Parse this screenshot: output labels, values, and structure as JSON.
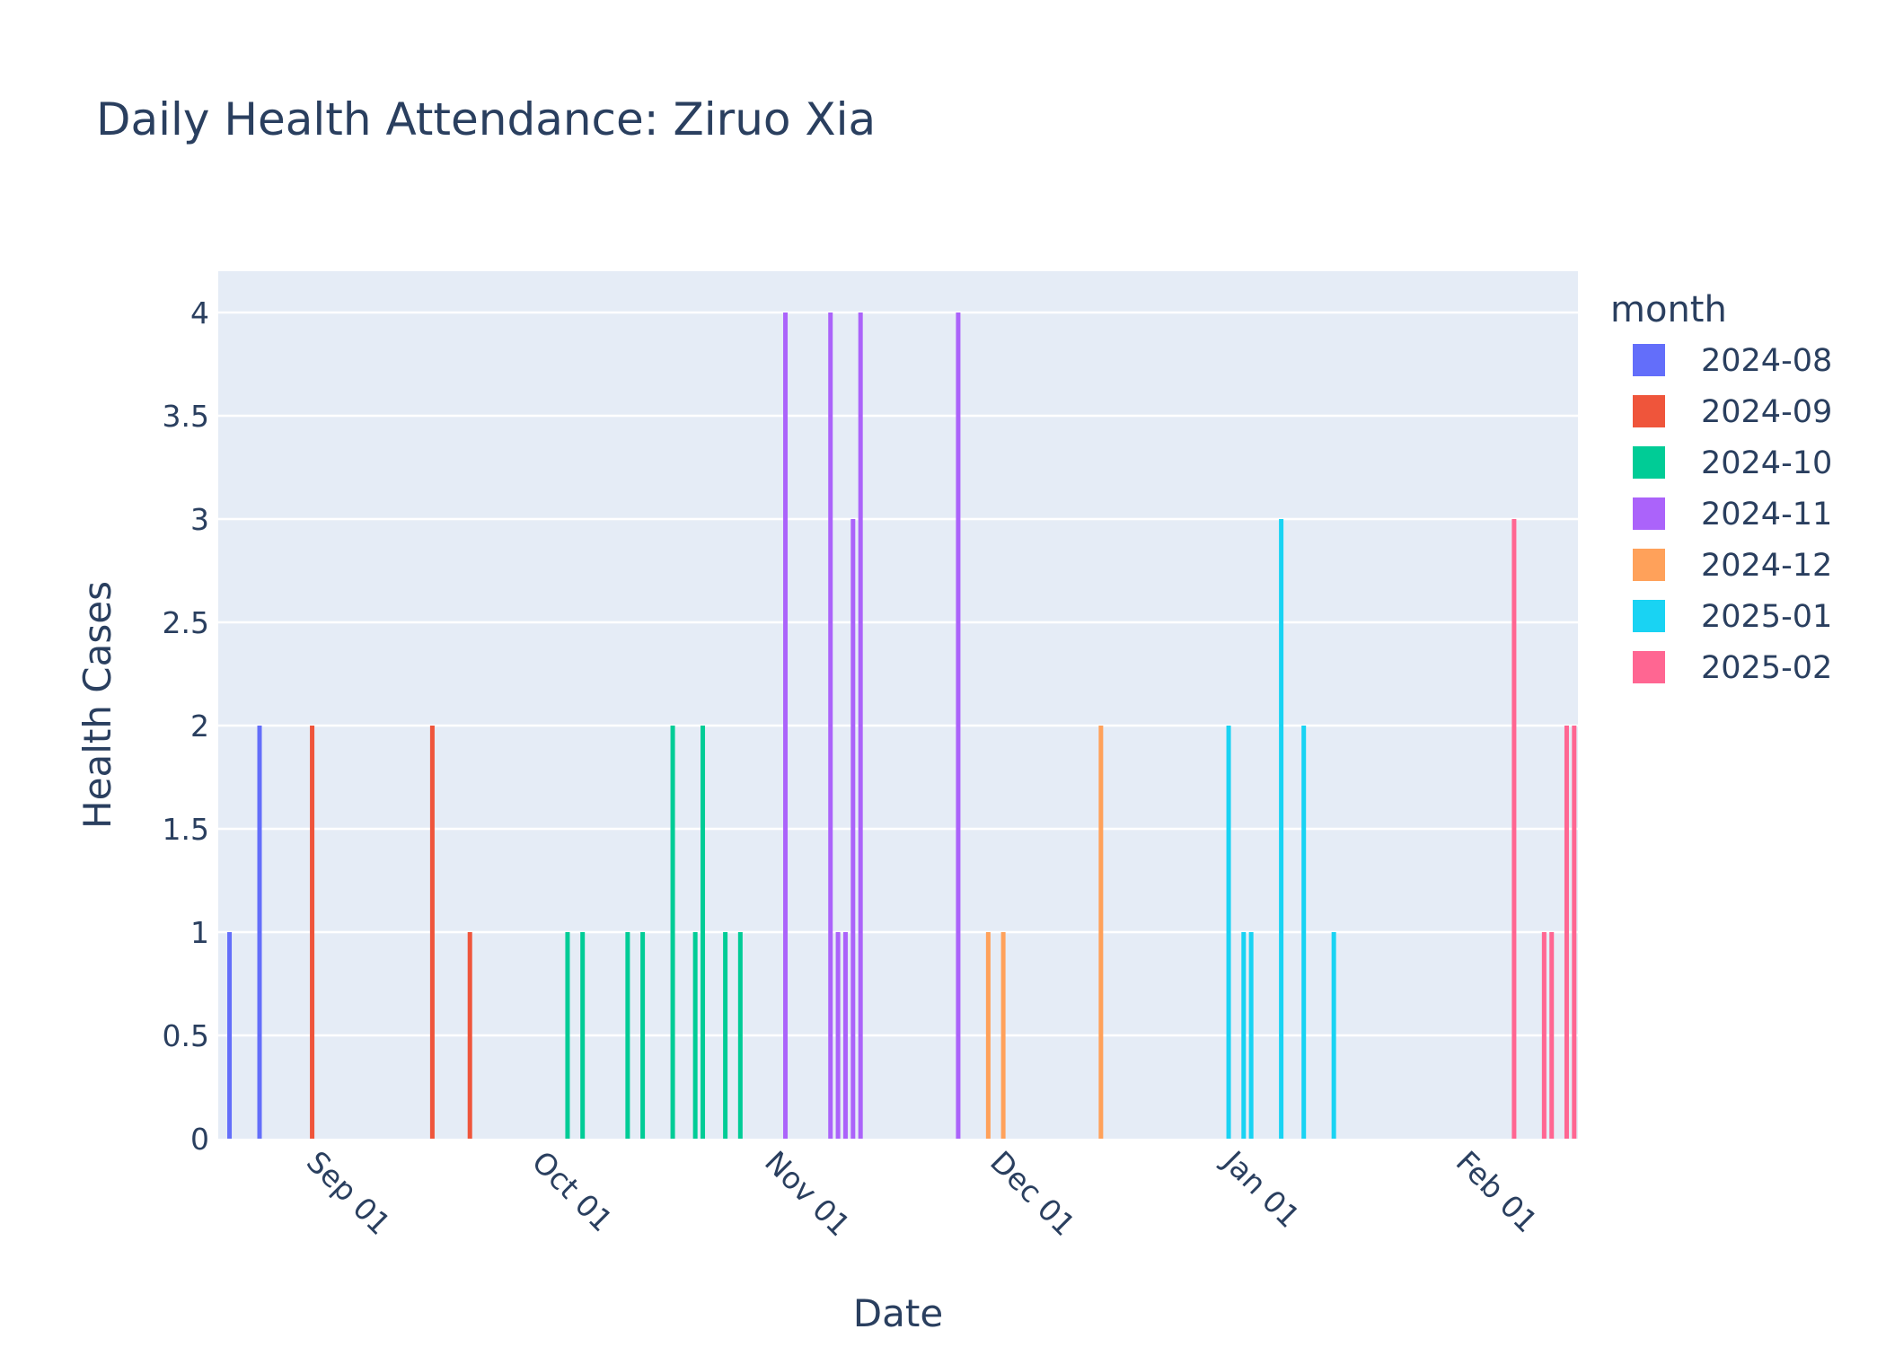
{
  "chart_data": {
    "type": "bar",
    "title": "Daily Health Attendance: Ziruo Xia",
    "xlabel": "Date",
    "ylabel": "Health Cases",
    "ylim": [
      0,
      4.2
    ],
    "xlim": [
      "2024-08-20",
      "2025-02-16"
    ],
    "y_ticks": [
      0,
      0.5,
      1,
      1.5,
      2,
      2.5,
      3,
      3.5,
      4
    ],
    "y_tick_labels": [
      "0",
      "0.5",
      "1",
      "1.5",
      "2",
      "2.5",
      "3",
      "3.5",
      "4"
    ],
    "x_ticks": [
      "2024-09-01",
      "2024-10-01",
      "2024-11-01",
      "2024-12-01",
      "2025-01-01",
      "2025-02-01"
    ],
    "x_tick_labels": [
      "Sep 01",
      "Oct 01",
      "Nov 01",
      "Dec 01",
      "Jan 01",
      "Feb 01"
    ],
    "grid": true,
    "legend_title": "month",
    "legend_position": "right",
    "series": [
      {
        "name": "2024-08",
        "color": "#636efa",
        "x": [
          "2024-08-21",
          "2024-08-25"
        ],
        "values": [
          1,
          2
        ]
      },
      {
        "name": "2024-09",
        "color": "#ef553b",
        "x": [
          "2024-09-01",
          "2024-09-17",
          "2024-09-22"
        ],
        "values": [
          2,
          2,
          1
        ]
      },
      {
        "name": "2024-10",
        "color": "#00cc96",
        "x": [
          "2024-10-05",
          "2024-10-07",
          "2024-10-13",
          "2024-10-15",
          "2024-10-19",
          "2024-10-22",
          "2024-10-23",
          "2024-10-26",
          "2024-10-28"
        ],
        "values": [
          1,
          1,
          1,
          1,
          2,
          1,
          2,
          1,
          1
        ]
      },
      {
        "name": "2024-11",
        "color": "#ab63fa",
        "x": [
          "2024-11-03",
          "2024-11-09",
          "2024-11-10",
          "2024-11-11",
          "2024-11-12",
          "2024-11-13",
          "2024-11-26"
        ],
        "values": [
          4,
          4,
          1,
          1,
          3,
          4,
          4
        ]
      },
      {
        "name": "2024-12",
        "color": "#ffa15a",
        "x": [
          "2024-11-30",
          "2024-12-02",
          "2024-12-15"
        ],
        "values": [
          1,
          1,
          2
        ]
      },
      {
        "name": "2025-01",
        "color": "#19d3f3",
        "x": [
          "2025-01-01",
          "2025-01-03",
          "2025-01-04",
          "2025-01-08",
          "2025-01-11",
          "2025-01-15"
        ],
        "values": [
          2,
          1,
          1,
          3,
          2,
          1
        ]
      },
      {
        "name": "2025-02",
        "color": "#ff6692",
        "x": [
          "2025-02-08",
          "2025-02-12",
          "2025-02-13",
          "2025-02-15",
          "2025-02-16"
        ],
        "values": [
          3,
          1,
          1,
          2,
          2
        ]
      }
    ]
  }
}
